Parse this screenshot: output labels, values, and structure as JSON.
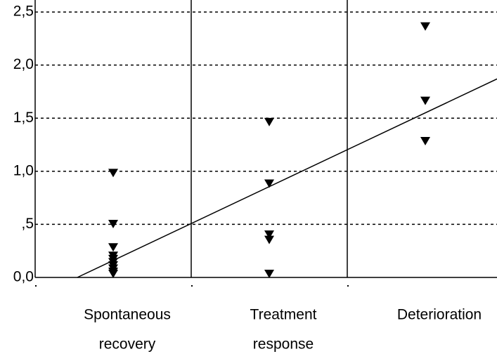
{
  "chart_data": {
    "type": "scatter",
    "categories": [
      [
        "Spontaneous",
        "recovery"
      ],
      [
        "Treatment",
        "response"
      ],
      [
        "Deterioration"
      ]
    ],
    "values": [
      [
        0.95,
        0.47,
        0.25,
        0.17,
        0.14,
        0.11,
        0.08,
        0.05,
        0.02,
        0.0
      ],
      [
        1.43,
        0.85,
        0.37,
        0.32,
        0.0
      ],
      [
        2.33,
        1.63,
        1.25
      ]
    ],
    "color": "#000000",
    "trendline": {
      "x": [
        0.77,
        3.46
      ],
      "y": [
        0,
        1.87
      ]
    },
    "ylim": [
      0,
      2.58
    ],
    "yticks": [
      {
        "value": 0,
        "label": "0,0"
      },
      {
        "value": 0.5,
        "label": ",5"
      },
      {
        "value": 1.0,
        "label": "1,0"
      },
      {
        "value": 1.5,
        "label": "1,5"
      },
      {
        "value": 2.0,
        "label": "2,0"
      },
      {
        "value": 2.5,
        "label": "2,5"
      }
    ],
    "grid": true
  }
}
